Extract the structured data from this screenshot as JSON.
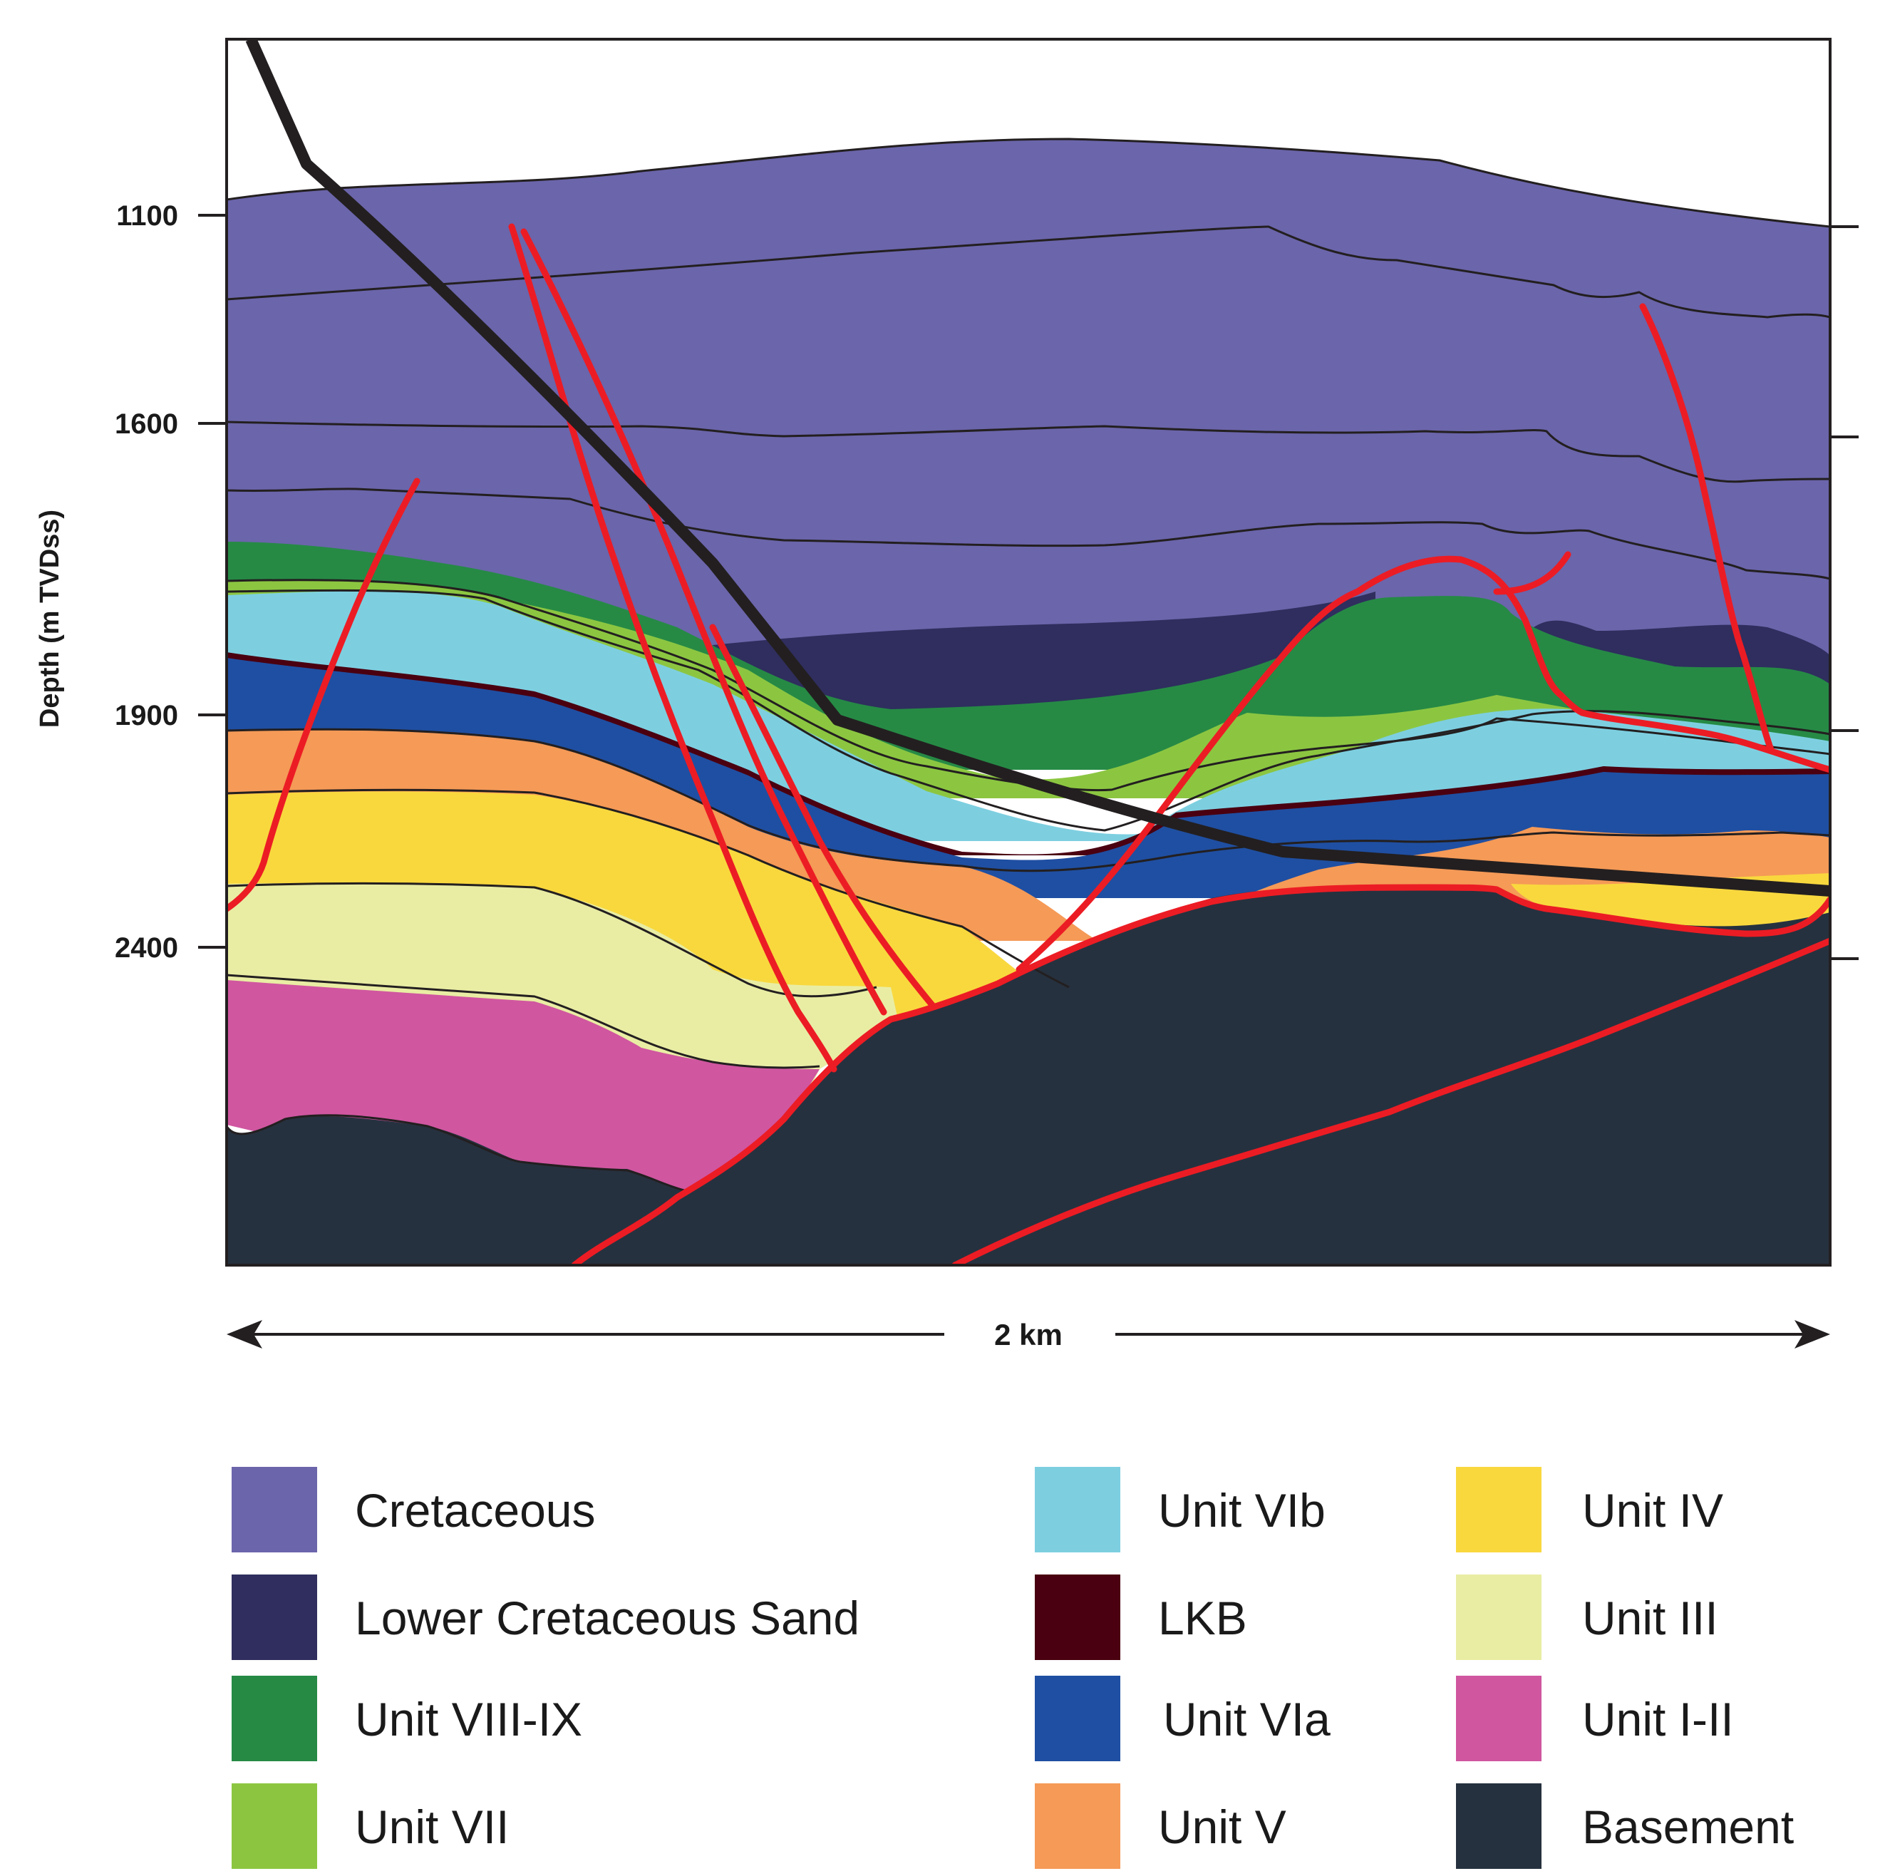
{
  "diagram": {
    "y_axis": {
      "title": "Depth (m TVDss)",
      "ticks": [
        "1100",
        "1600",
        "1900",
        "2400"
      ]
    },
    "scale_bar": {
      "label": "2 km"
    },
    "legend": [
      {
        "label": "Cretaceous",
        "color": "#6b65ab"
      },
      {
        "label": "Lower Cretaceous Sand",
        "color": "#2f2e5e"
      },
      {
        "label": "Unit VIII-IX",
        "color": "#268a45"
      },
      {
        "label": "Unit  VII",
        "color": "#8cc641"
      },
      {
        "label": "Unit VIb",
        "color": "#7dcfe0"
      },
      {
        "label": "LKB",
        "color": "#4a0010"
      },
      {
        "label": "Unit VIa",
        "color": "#1f4fa2"
      },
      {
        "label": "Unit  V",
        "color": "#f59a57"
      },
      {
        "label": "Unit  IV",
        "color": "#f9d83e"
      },
      {
        "label": "Unit  III",
        "color": "#e9eda4"
      },
      {
        "label": "Unit  I-II",
        "color": "#d056a0"
      },
      {
        "label": "Basement",
        "color": "#26313f"
      }
    ],
    "colors": {
      "fault": "#ec1c24",
      "well": "#231f20",
      "horizon": "#231f20"
    }
  }
}
